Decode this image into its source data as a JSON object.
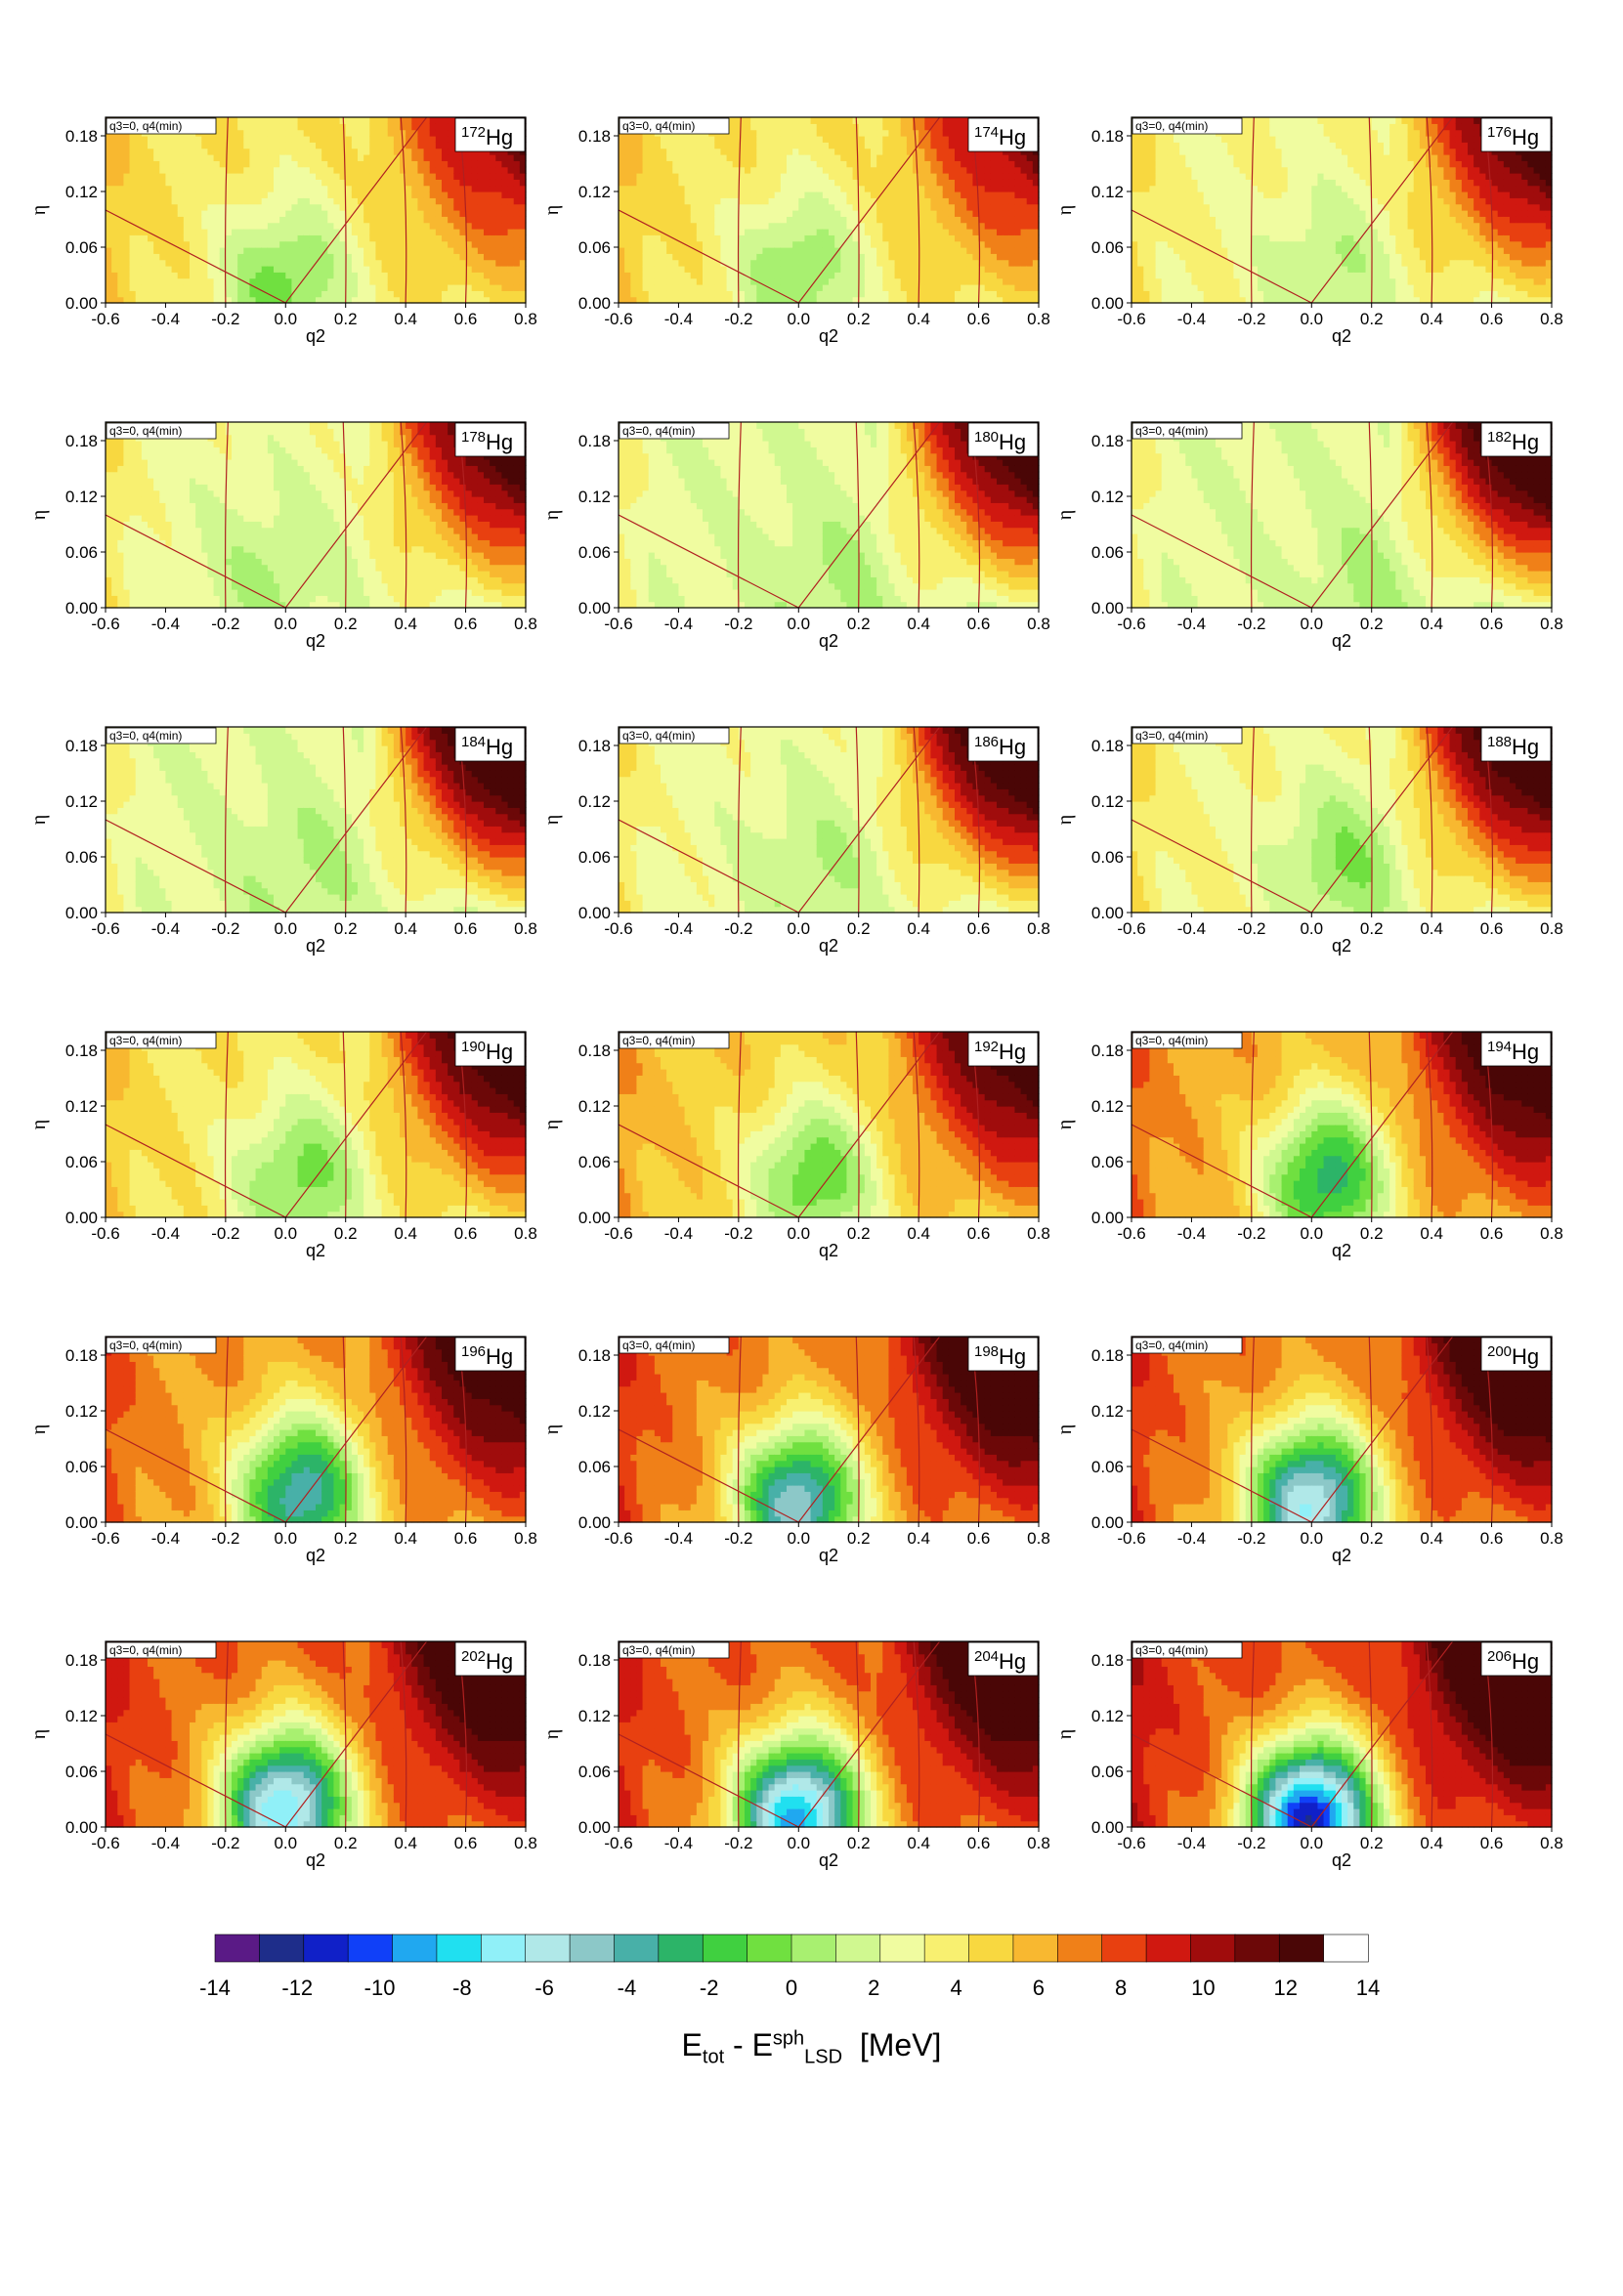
{
  "figure": {
    "panel_note": "q3=0, q4(min)",
    "element_symbol": "Hg",
    "x_label": "q2",
    "y_label": "η",
    "x_ticks": [
      "-0.6",
      "-0.4",
      "-0.2",
      "0.0",
      "0.2",
      "0.4",
      "0.6",
      "0.8"
    ],
    "y_ticks": [
      "0.00",
      "0.06",
      "0.12",
      "0.18"
    ],
    "mass_numbers": [
      "172",
      "174",
      "176",
      "178",
      "180",
      "182",
      "184",
      "186",
      "188",
      "190",
      "192",
      "194",
      "196",
      "198",
      "200",
      "202",
      "204",
      "206"
    ]
  },
  "colorbar": {
    "tick_labels": [
      "-14",
      "-12",
      "-10",
      "-8",
      "-6",
      "-4",
      "-2",
      "0",
      "2",
      "4",
      "6",
      "8",
      "10",
      "12",
      "14"
    ],
    "colors": [
      "#5a1a86",
      "#1e2d8a",
      "#1020c8",
      "#1040f8",
      "#20a8f0",
      "#20e0f0",
      "#90f0f8",
      "#b0e8e8",
      "#8cc8c8",
      "#48b0a8",
      "#2cb468",
      "#40d040",
      "#70e040",
      "#a8f070",
      "#d0f890",
      "#f0fca0",
      "#f8f070",
      "#f8d840",
      "#f8b830",
      "#f08018",
      "#e84010",
      "#d01810",
      "#a00c0c",
      "#6c0808",
      "#4a0606",
      "#ffffff"
    ],
    "title_main": "E",
    "title_sub1": "tot",
    "title_dash": " - E",
    "title_sup": "sph",
    "title_sub2": "LSD",
    "title_unit": "[MeV]"
  },
  "chart_data": {
    "type": "heatmap",
    "description_axes": {
      "x": "q2",
      "y": "η"
    },
    "x_range": [
      -0.6,
      0.8
    ],
    "y_range": [
      0.0,
      0.2
    ],
    "z_range": [
      -14,
      14
    ],
    "z_unit": "MeV",
    "panels": [
      {
        "nucleus": "172Hg",
        "min_energy": 0,
        "min_at": [
          0.0,
          0.02
        ],
        "shoulder": 5,
        "ridge": 9
      },
      {
        "nucleus": "174Hg",
        "min_energy": 0.5,
        "min_at": [
          0.0,
          0.03
        ],
        "shoulder": 5,
        "ridge": 9
      },
      {
        "nucleus": "176Hg",
        "min_energy": 1.5,
        "min_at": [
          0.05,
          0.03
        ],
        "shoulder": 4,
        "ridge": 10
      },
      {
        "nucleus": "178Hg",
        "min_energy": 1.5,
        "min_at": [
          -0.05,
          0.03
        ],
        "shoulder": 3.5,
        "ridge": 10
      },
      {
        "nucleus": "180Hg",
        "min_energy": 1.5,
        "min_at": [
          0.1,
          0.02
        ],
        "shoulder": 3,
        "ridge": 10
      },
      {
        "nucleus": "182Hg",
        "min_energy": 1.5,
        "min_at": [
          0.2,
          0.02
        ],
        "shoulder": 3,
        "ridge": 11
      },
      {
        "nucleus": "184Hg",
        "min_energy": 1.5,
        "min_at": [
          0.05,
          0.04
        ],
        "shoulder": 3,
        "ridge": 11
      },
      {
        "nucleus": "186Hg",
        "min_energy": 1.5,
        "min_at": [
          0.05,
          0.04
        ],
        "shoulder": 3.5,
        "ridge": 11
      },
      {
        "nucleus": "188Hg",
        "min_energy": 0.5,
        "min_at": [
          0.1,
          0.05
        ],
        "shoulder": 4,
        "ridge": 11
      },
      {
        "nucleus": "190Hg",
        "min_energy": 0,
        "min_at": [
          0.05,
          0.04
        ],
        "shoulder": 5,
        "ridge": 11
      },
      {
        "nucleus": "192Hg",
        "min_energy": -0.5,
        "min_at": [
          0.05,
          0.04
        ],
        "shoulder": 6,
        "ridge": 11
      },
      {
        "nucleus": "194Hg",
        "min_energy": -2.5,
        "min_at": [
          0.05,
          0.04
        ],
        "shoulder": 7,
        "ridge": 12
      },
      {
        "nucleus": "196Hg",
        "min_energy": -4,
        "min_at": [
          0.05,
          0.03
        ],
        "shoulder": 7.5,
        "ridge": 12
      },
      {
        "nucleus": "198Hg",
        "min_energy": -5,
        "min_at": [
          0.0,
          0.02
        ],
        "shoulder": 8,
        "ridge": 13
      },
      {
        "nucleus": "200Hg",
        "min_energy": -6.5,
        "min_at": [
          0.0,
          0.02
        ],
        "shoulder": 8,
        "ridge": 13
      },
      {
        "nucleus": "202Hg",
        "min_energy": -7.5,
        "min_at": [
          0.0,
          0.02
        ],
        "shoulder": 8.5,
        "ridge": 13
      },
      {
        "nucleus": "204Hg",
        "min_energy": -9,
        "min_at": [
          0.0,
          0.01
        ],
        "shoulder": 8.5,
        "ridge": 13
      },
      {
        "nucleus": "206Hg",
        "min_energy": -12,
        "min_at": [
          0.0,
          0.005
        ],
        "shoulder": 9,
        "ridge": 14
      }
    ]
  }
}
